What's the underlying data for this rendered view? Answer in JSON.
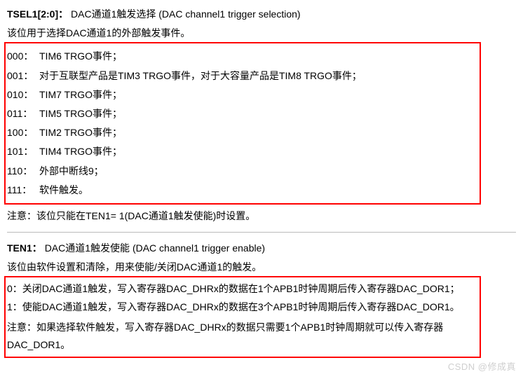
{
  "section1": {
    "field": "TSEL1[2:0]：",
    "title_cn": "DAC通道1触发选择",
    "title_en": " (DAC channel1 trigger selection)",
    "desc": "该位用于选择DAC通道1的外部触发事件。",
    "options": [
      {
        "code": "000：",
        "text": "TIM6 TRGO事件；"
      },
      {
        "code": "001：",
        "text": "对于互联型产品是TIM3 TRGO事件，对于大容量产品是TIM8 TRGO事件；"
      },
      {
        "code": "010：",
        "text": "TIM7 TRGO事件；"
      },
      {
        "code": "011：",
        "text": "TIM5 TRGO事件；"
      },
      {
        "code": "100：",
        "text": "TIM2 TRGO事件；"
      },
      {
        "code": "101：",
        "text": "TIM4 TRGO事件；"
      },
      {
        "code": "110：",
        "text": "外部中断线9；"
      },
      {
        "code": "111：",
        "text": "软件触发。"
      }
    ],
    "note": "注意：该位只能在TEN1= 1(DAC通道1触发使能)时设置。"
  },
  "section2": {
    "field": "TEN1：",
    "title_cn": "DAC通道1触发使能",
    "title_en": " (DAC channel1 trigger enable)",
    "desc": "该位由软件设置和清除，用来使能/关闭DAC通道1的触发。",
    "options": [
      {
        "code": "0：",
        "text": "关闭DAC通道1触发，写入寄存器DAC_DHRx的数据在1个APB1时钟周期后传入寄存器DAC_DOR1；"
      },
      {
        "code": "1：",
        "text": "使能DAC通道1触发，写入寄存器DAC_DHRx的数据在3个APB1时钟周期后传入寄存器DAC_DOR1。"
      }
    ],
    "note": "注意：如果选择软件触发，写入寄存器DAC_DHRx的数据只需要1个APB1时钟周期就可以传入寄存器DAC_DOR1。"
  },
  "watermark": "CSDN @修成真"
}
